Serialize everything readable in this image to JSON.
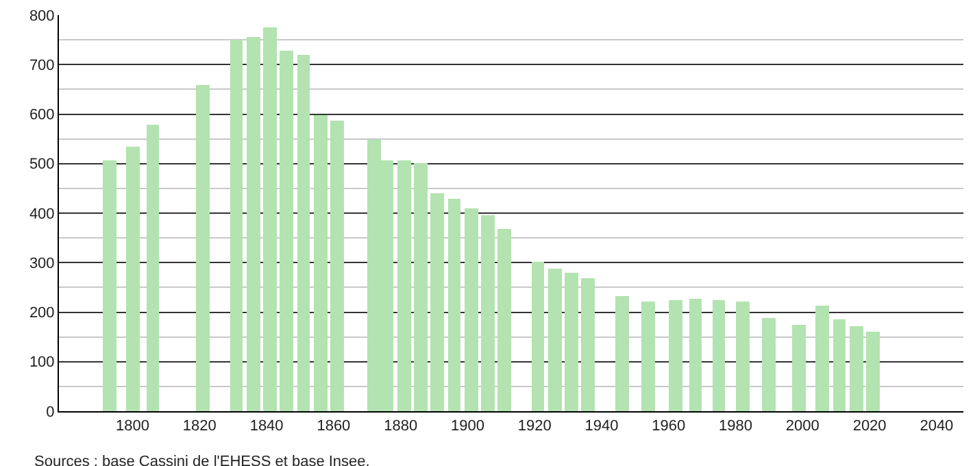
{
  "chart_data": {
    "type": "bar",
    "x": [
      1793,
      1800,
      1806,
      1821,
      1831,
      1836,
      1841,
      1846,
      1851,
      1856,
      1861,
      1872,
      1876,
      1881,
      1886,
      1891,
      1896,
      1901,
      1906,
      1911,
      1921,
      1926,
      1931,
      1936,
      1946,
      1954,
      1962,
      1968,
      1975,
      1982,
      1990,
      1999,
      2006,
      2011,
      2016,
      2021
    ],
    "values": [
      506,
      533,
      578,
      658,
      749,
      756,
      775,
      728,
      720,
      599,
      587,
      549,
      506,
      506,
      500,
      440,
      428,
      410,
      396,
      368,
      302,
      288,
      279,
      268,
      233,
      222,
      224,
      226,
      224,
      222,
      188,
      174,
      213,
      185,
      171,
      160
    ],
    "color": "#b3e3b0",
    "xlim": [
      1778,
      2048
    ],
    "xticks": [
      1800,
      1820,
      1840,
      1860,
      1880,
      1900,
      1920,
      1940,
      1960,
      1980,
      2000,
      2020,
      2040
    ],
    "ylim": [
      0,
      800
    ],
    "yticks": [
      0,
      100,
      200,
      300,
      400,
      500,
      600,
      700,
      800
    ],
    "grid": "y",
    "annotations": [
      "Sources : base Cassini de l'EHESS et base Insee."
    ]
  }
}
